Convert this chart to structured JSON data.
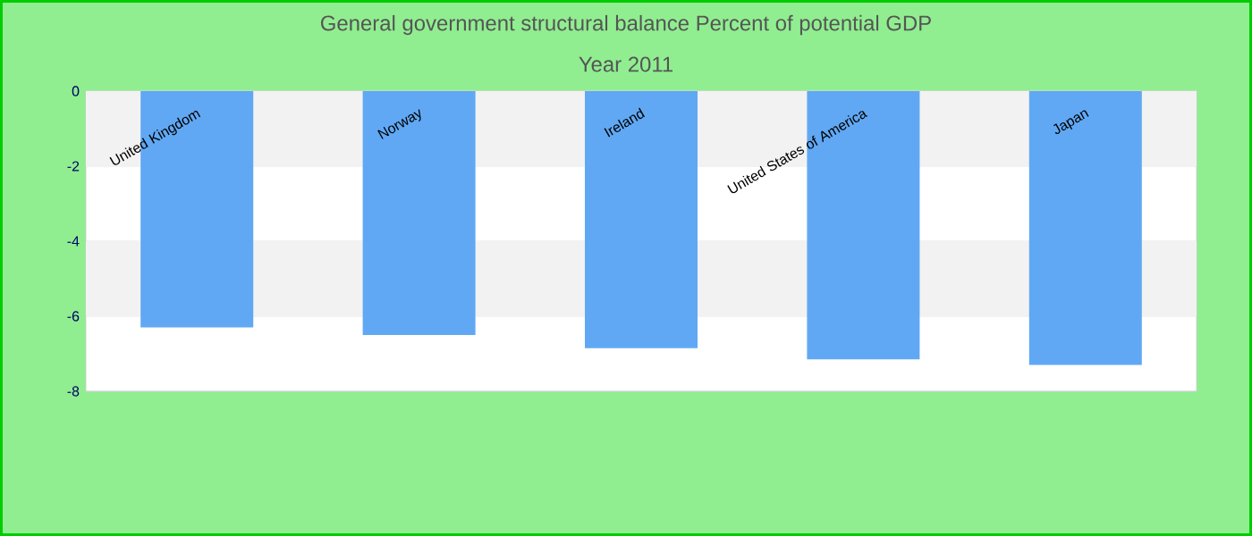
{
  "chart_data": {
    "type": "bar",
    "title": "General government structural balance  Percent of potential GDP",
    "subtitle": "Year 2011",
    "categories": [
      "United Kingdom",
      "Norway",
      "Ireland",
      "United States of America",
      "Japan"
    ],
    "values": [
      -6.3,
      -6.5,
      -6.85,
      -7.15,
      -7.3
    ],
    "color": "#60a8f4",
    "ylim": [
      -8,
      0
    ],
    "yticks": [
      -8,
      -6,
      -4,
      -2,
      0
    ],
    "grid": "y"
  }
}
